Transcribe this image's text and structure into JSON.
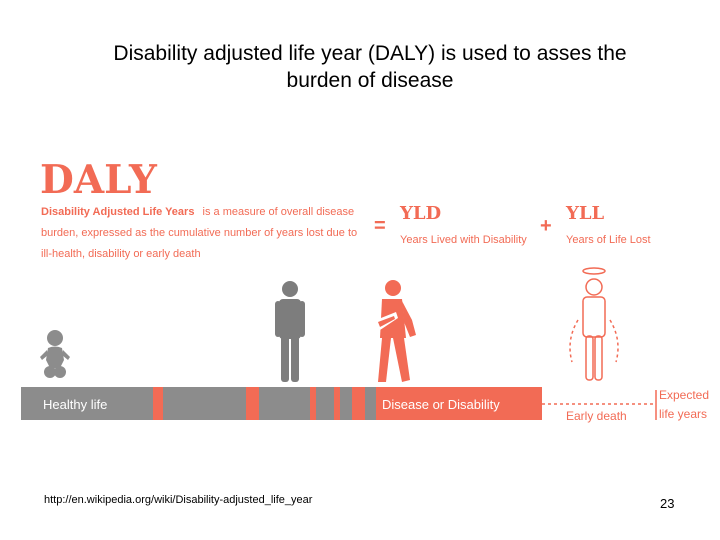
{
  "slide": {
    "title_line1": "Disability adjusted life year (DALY) is used to asses the",
    "title_line2": "burden of disease",
    "footer_url": "http://en.wikipedia.org/wiki/Disability-adjusted_life_year",
    "page_number": "23"
  },
  "infographic": {
    "heading": "DALY",
    "desc_bold": "Disability Adjusted Life Years",
    "desc_line1_rest": "is a measure of overall disease",
    "desc_line2": "burden, expressed as the cumulative number of years lost due to",
    "desc_line3": "ill-health, disability or early death",
    "equals_sign": "=",
    "plus_sign": "+",
    "yld_label": "YLD",
    "yld_caption": "Years Lived with Disability",
    "yll_label": "YLL",
    "yll_caption": "Years of Life Lost",
    "healthy_life_label": "Healthy life",
    "disease_label": "Disease or Disability",
    "early_death_label": "Early death",
    "expected_line1": "Expected",
    "expected_line2": "life years",
    "colors": {
      "accent": "#f26b55",
      "gray_bar": "#8c8c8c",
      "figure_gray": "#9a9a9a",
      "figure_dark": "#7d7d7d"
    }
  }
}
